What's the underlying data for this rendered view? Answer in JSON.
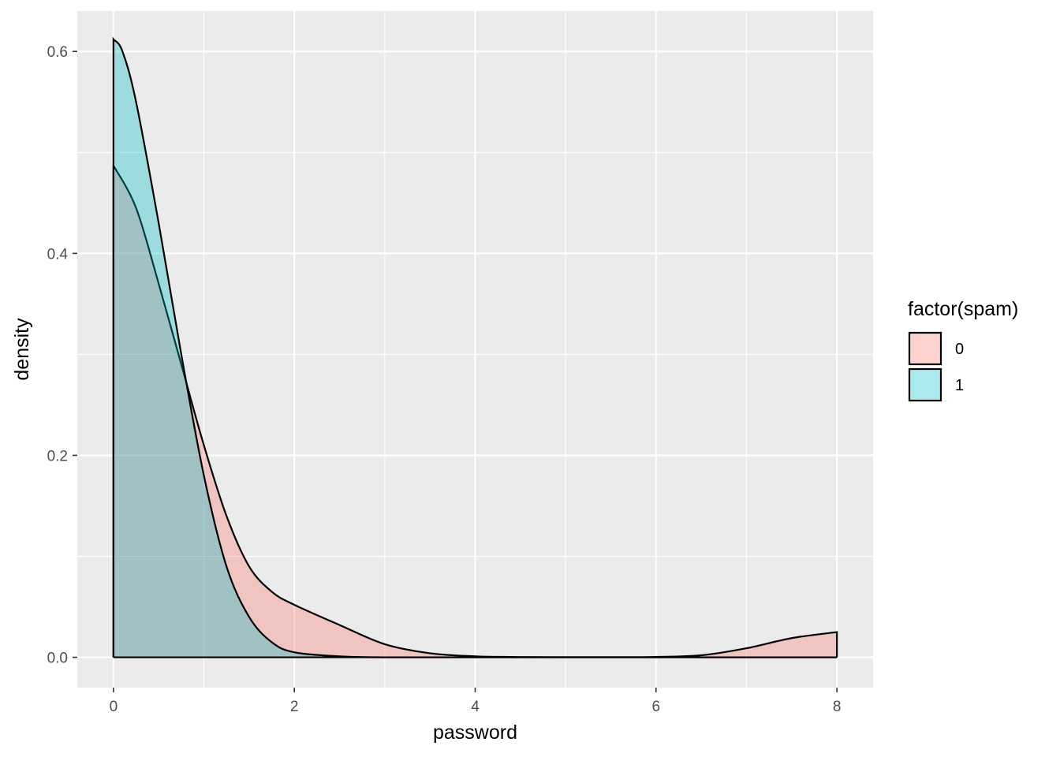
{
  "chart_data": {
    "type": "area",
    "subtype": "density",
    "xlabel": "password",
    "ylabel": "density",
    "xlim": [
      -0.4,
      8.4
    ],
    "ylim": [
      -0.03,
      0.64
    ],
    "x_ticks": [
      0,
      2,
      4,
      6,
      8
    ],
    "x_tick_labels": [
      "0",
      "2",
      "4",
      "6",
      "8"
    ],
    "y_ticks": [
      0.0,
      0.2,
      0.4,
      0.6
    ],
    "y_tick_labels": [
      "0.0",
      "0.2",
      "0.4",
      "0.6"
    ],
    "x_minor_ticks": [
      1,
      3,
      5,
      7
    ],
    "y_minor_ticks": [
      0.1,
      0.3,
      0.5
    ],
    "grid": true,
    "legend": {
      "title": "factor(spam)",
      "placement": "right",
      "entries": [
        {
          "label": "0",
          "color": "#F8766D"
        },
        {
          "label": "1",
          "color": "#00BFC4"
        }
      ]
    },
    "series": [
      {
        "name": "0",
        "color": "#F8766D",
        "x": [
          0,
          0.25,
          0.5,
          0.75,
          1.0,
          1.25,
          1.5,
          1.75,
          2.0,
          2.5,
          3.0,
          3.5,
          4.0,
          4.5,
          5.0,
          5.5,
          6.0,
          6.5,
          7.0,
          7.5,
          8.0
        ],
        "y": [
          0.487,
          0.445,
          0.37,
          0.29,
          0.21,
          0.14,
          0.09,
          0.065,
          0.052,
          0.032,
          0.013,
          0.004,
          0.001,
          0.0003,
          0.0002,
          0.0002,
          0.0004,
          0.002,
          0.009,
          0.019,
          0.025
        ]
      },
      {
        "name": "1",
        "color": "#00BFC4",
        "x": [
          0,
          0.1,
          0.25,
          0.5,
          0.75,
          1.0,
          1.25,
          1.5,
          1.75,
          2.0,
          2.5,
          3.0,
          3.5,
          4.0,
          5.0,
          6.0,
          7.0,
          8.0
        ],
        "y": [
          0.612,
          0.6,
          0.55,
          0.43,
          0.3,
          0.18,
          0.09,
          0.04,
          0.015,
          0.005,
          0.001,
          0.0,
          0.0,
          0.0,
          0.0,
          0.0,
          0.0,
          0.0
        ]
      }
    ]
  }
}
